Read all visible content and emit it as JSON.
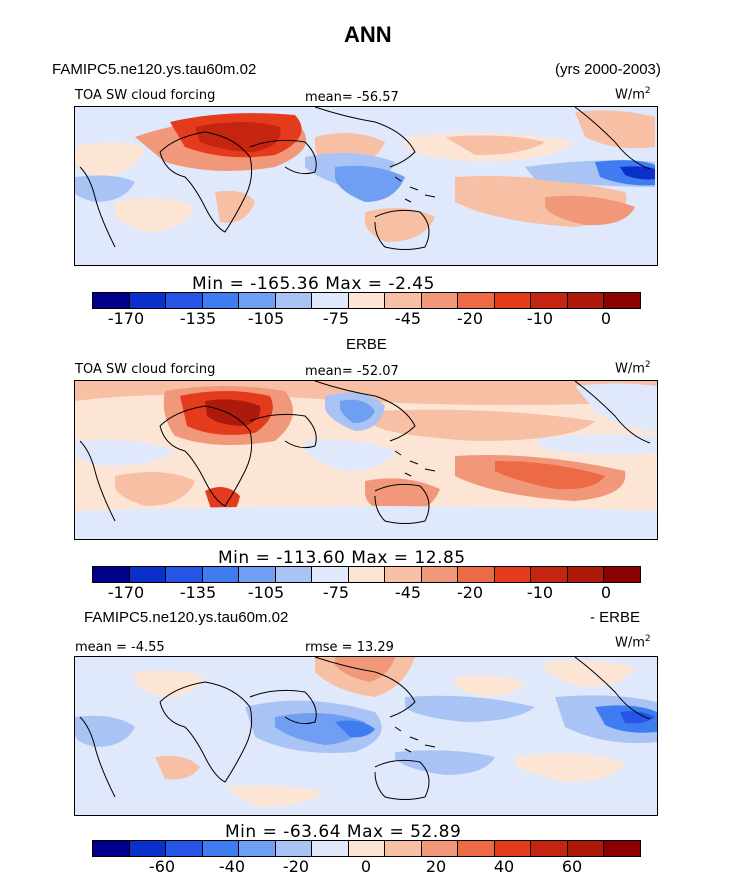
{
  "title": "ANN",
  "panels": [
    {
      "case_label": "FAMIPC5.ne120.ys.tau60m.02",
      "years": "(yrs 2000-2003)",
      "variable": "TOA SW cloud forcing",
      "stat_left": "",
      "stat_center": "mean=  -56.57",
      "units": "W/m",
      "units_exp": "2",
      "minmax": "Min  =  -165.36  Max  =   -2.45",
      "cbar_ticks": [
        "-170",
        "-135",
        "-105",
        "-75",
        "-45",
        "-20",
        "-10",
        "0"
      ]
    },
    {
      "case_label": "ERBE",
      "variable": "TOA SW cloud forcing",
      "stat_left": "",
      "stat_center": "mean=  -52.07",
      "units": "W/m",
      "units_exp": "2",
      "minmax": "Min  =  -113.60  Max  =   12.85",
      "cbar_ticks": [
        "-170",
        "-135",
        "-105",
        "-75",
        "-45",
        "-20",
        "-10",
        "0"
      ]
    },
    {
      "case_label": "FAMIPC5.ne120.ys.tau60m.02",
      "case_label_right": "- ERBE",
      "stat_left": "mean  =  -4.55",
      "stat_center": "rmse  =  13.29",
      "units": "W/m",
      "units_exp": "2",
      "minmax": "Min  =  -63.64  Max  =   52.89",
      "cbar_ticks": [
        "-60",
        "-40",
        "-20",
        "0",
        "20",
        "40",
        "60"
      ]
    }
  ],
  "colors": {
    "abs_scale": [
      "#00008b",
      "#0a2fcb",
      "#2554e6",
      "#3e7cf0",
      "#6f9ff2",
      "#a9c3f5",
      "#dfe9fb",
      "#fde5d6",
      "#f7bfa3",
      "#f2987a",
      "#ed6a47",
      "#e43b1c",
      "#c52510",
      "#ad1a0c",
      "#8b0000"
    ],
    "diff_scale": [
      "#00008b",
      "#0a2fcb",
      "#2554e6",
      "#3e7cf0",
      "#6f9ff2",
      "#a9c3f5",
      "#dfe9fb",
      "#fde5d6",
      "#f7bfa3",
      "#f2987a",
      "#ed6a47",
      "#e43b1c",
      "#c52510",
      "#ad1a0c",
      "#8b0000"
    ]
  }
}
